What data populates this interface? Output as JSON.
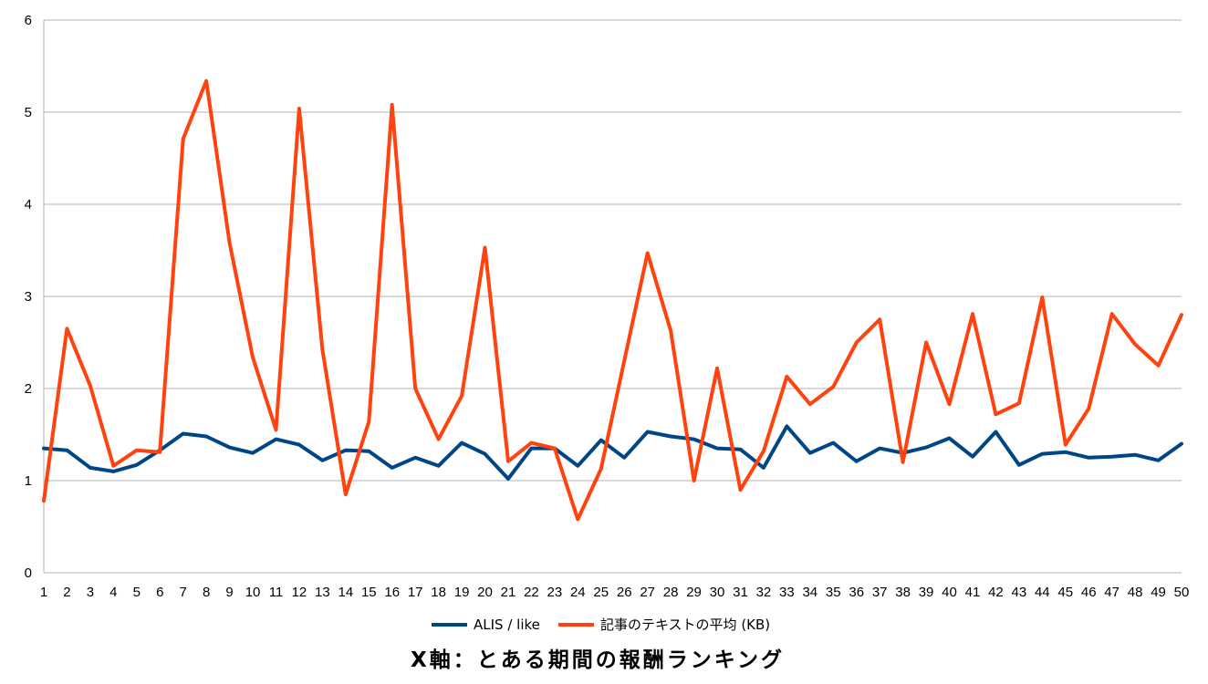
{
  "chart_data": {
    "type": "line",
    "title": "",
    "xlabel": "X軸：とある期間の報酬ランキング",
    "ylabel": "",
    "ylim": [
      0,
      6
    ],
    "yticks": [
      "0",
      "1",
      "2",
      "3",
      "4",
      "5",
      "6"
    ],
    "grid": true,
    "legend_position": "bottom",
    "x": [
      "1",
      "2",
      "3",
      "4",
      "5",
      "6",
      "7",
      "8",
      "9",
      "10",
      "11",
      "12",
      "13",
      "14",
      "15",
      "16",
      "17",
      "18",
      "19",
      "20",
      "21",
      "22",
      "23",
      "24",
      "25",
      "26",
      "27",
      "28",
      "29",
      "30",
      "31",
      "32",
      "33",
      "34",
      "35",
      "36",
      "37",
      "38",
      "39",
      "40",
      "41",
      "42",
      "43",
      "44",
      "45",
      "46",
      "47",
      "48",
      "49",
      "50"
    ],
    "series": [
      {
        "name": "ALIS / like",
        "color": "#004586",
        "values": [
          1.35,
          1.33,
          1.14,
          1.1,
          1.17,
          1.33,
          1.51,
          1.48,
          1.36,
          1.3,
          1.45,
          1.39,
          1.22,
          1.33,
          1.32,
          1.14,
          1.25,
          1.16,
          1.41,
          1.29,
          1.02,
          1.35,
          1.35,
          1.16,
          1.44,
          1.25,
          1.53,
          1.48,
          1.45,
          1.35,
          1.34,
          1.14,
          1.59,
          1.3,
          1.41,
          1.21,
          1.35,
          1.3,
          1.36,
          1.46,
          1.26,
          1.53,
          1.17,
          1.29,
          1.31,
          1.25,
          1.26,
          1.28,
          1.22,
          1.4
        ]
      },
      {
        "name": "記事のテキストの平均 (KB)",
        "color": "#ff420e",
        "values": [
          0.78,
          2.65,
          2.03,
          1.16,
          1.33,
          1.31,
          4.71,
          5.34,
          3.58,
          2.34,
          1.55,
          5.04,
          2.42,
          0.85,
          1.64,
          5.08,
          2.0,
          1.45,
          1.92,
          3.53,
          1.21,
          1.41,
          1.35,
          0.58,
          1.13,
          2.3,
          3.47,
          2.63,
          1.0,
          2.22,
          0.9,
          1.32,
          2.13,
          1.83,
          2.02,
          2.5,
          2.75,
          1.2,
          2.5,
          1.83,
          2.81,
          1.72,
          1.84,
          2.99,
          1.39,
          1.78,
          2.81,
          2.48,
          2.25,
          2.8
        ]
      }
    ]
  }
}
